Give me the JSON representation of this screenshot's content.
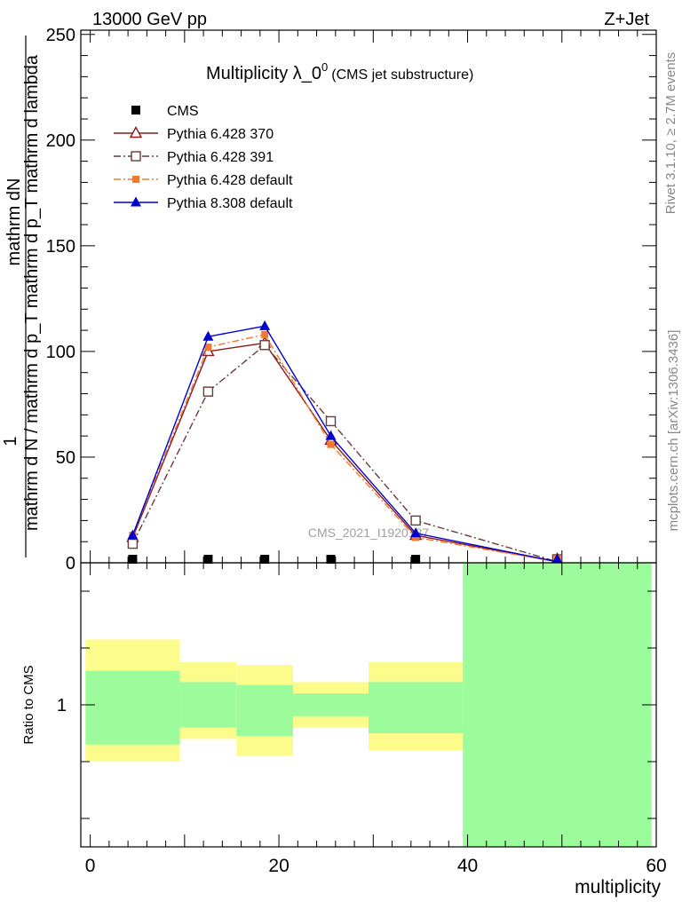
{
  "header": {
    "left": "13000 GeV pp",
    "right": "Z+Jet"
  },
  "side_labels": {
    "rivet": "Rivet 3.1.10, ≥ 2.7M events",
    "mcplots": "mcplots.cern.ch [arXiv:1306.3436]"
  },
  "colors": {
    "pythia6_370": "#8b1a1a",
    "pythia6_391": "#6b3a3a",
    "pythia6_default": "#f07830",
    "pythia8_default": "#0000cc",
    "cms": "#000000",
    "band_inner": "#9cfc9c",
    "band_outer": "#fcfc8c"
  },
  "chart_data": [
    {
      "type": "line",
      "title": "Multiplicity λ_0",
      "title_sup": "0",
      "subtitle": "(CMS jet substructure)",
      "watermark": "CMS_2021_I1920187",
      "ylabel_numerator": "mathrm dN",
      "ylabel_denominator": "mathrm d N / mathrm d p_T mathrm d p_T mathrm d lambda",
      "ylabel_one": "1",
      "xlim": [
        -1,
        60
      ],
      "ylim": [
        0,
        252
      ],
      "yticks": [
        0,
        50,
        100,
        150,
        200,
        250
      ],
      "grid": false,
      "legend_position": "top-left",
      "series": [
        {
          "name": "CMS",
          "key": "cms",
          "marker": "square-filled",
          "x": [
            4.5,
            12.5,
            18.5,
            25.5,
            34.5,
            49.5
          ],
          "y": [
            0.5,
            0.5,
            0.5,
            0.5,
            0.5,
            0.2
          ]
        },
        {
          "name": "Pythia 6.428 370",
          "key": "pythia6_370",
          "marker": "triangle-open",
          "dash": "solid",
          "x": [
            4.5,
            12.5,
            18.5,
            25.5,
            34.5,
            49.5
          ],
          "y": [
            12,
            100,
            104,
            58,
            13,
            0.5
          ]
        },
        {
          "name": "Pythia 6.428 391",
          "key": "pythia6_391",
          "marker": "square-open",
          "dash": "dashdot",
          "x": [
            4.5,
            12.5,
            18.5,
            25.5,
            34.5,
            49.5
          ],
          "y": [
            9,
            81,
            103,
            67,
            20,
            0.5
          ]
        },
        {
          "name": "Pythia 6.428 default",
          "key": "pythia6_default",
          "marker": "square-filled-small",
          "dash": "dashdot",
          "x": [
            4.5,
            12.5,
            18.5,
            25.5,
            34.5,
            49.5
          ],
          "y": [
            13,
            102,
            108,
            56,
            12,
            0.5
          ]
        },
        {
          "name": "Pythia 8.308 default",
          "key": "pythia8_default",
          "marker": "triangle-filled",
          "dash": "solid",
          "x": [
            4.5,
            12.5,
            18.5,
            25.5,
            34.5,
            49.5
          ],
          "y": [
            13,
            107,
            112,
            60,
            14,
            0.5
          ]
        }
      ]
    },
    {
      "type": "area",
      "ylabel": "Ratio to CMS",
      "xlabel": "multiplicity",
      "xlim": [
        -1,
        60
      ],
      "ylim": [
        0.5,
        1.5
      ],
      "xticks": [
        0,
        20,
        40,
        60
      ],
      "ytick_labels": [
        "1"
      ],
      "bins": [
        {
          "x_low": -0.5,
          "x_high": 9.5,
          "inner": [
            0.86,
            1.12
          ],
          "outer": [
            0.8,
            1.23
          ]
        },
        {
          "x_low": 9.5,
          "x_high": 15.5,
          "inner": [
            0.92,
            1.08
          ],
          "outer": [
            0.88,
            1.15
          ]
        },
        {
          "x_low": 15.5,
          "x_high": 21.5,
          "inner": [
            0.89,
            1.07
          ],
          "outer": [
            0.82,
            1.14
          ]
        },
        {
          "x_low": 21.5,
          "x_high": 29.5,
          "inner": [
            0.96,
            1.04
          ],
          "outer": [
            0.92,
            1.08
          ]
        },
        {
          "x_low": 29.5,
          "x_high": 39.5,
          "inner": [
            0.9,
            1.08
          ],
          "outer": [
            0.84,
            1.15
          ]
        },
        {
          "x_low": 39.5,
          "x_high": 59.5,
          "inner": [
            0.5,
            1.5
          ],
          "outer": [
            0.5,
            1.7
          ]
        }
      ]
    }
  ]
}
